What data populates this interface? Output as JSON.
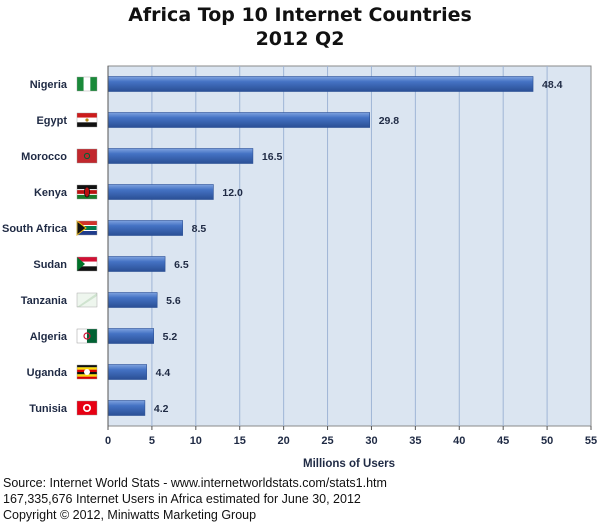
{
  "chart_data": {
    "type": "bar",
    "orientation": "horizontal",
    "title": "Africa Top 10 Internet Countries",
    "subtitle": "2012 Q2",
    "categories": [
      "Nigeria",
      "Egypt",
      "Morocco",
      "Kenya",
      "South Africa",
      "Sudan",
      "Tanzania",
      "Algeria",
      "Uganda",
      "Tunisia"
    ],
    "values": [
      48.4,
      29.8,
      16.5,
      12.0,
      8.5,
      6.5,
      5.6,
      5.2,
      4.4,
      4.2
    ],
    "value_labels": [
      "48.4",
      "29.8",
      "16.5",
      "12.0",
      "8.5",
      "6.5",
      "5.6",
      "5.2",
      "4.4",
      "4.2"
    ],
    "xlabel": "Millions of Users",
    "ylabel": "",
    "xlim": [
      0,
      55
    ],
    "xticks": [
      0,
      5,
      10,
      15,
      20,
      25,
      30,
      35,
      40,
      45,
      50,
      55
    ],
    "grid": true,
    "legend": "none"
  },
  "colors": {
    "plot_background": "#dbe5f1",
    "bar_fill": "#4472c4",
    "bar_dark": "#2a4f95",
    "bar_light": "#7fa3e0",
    "grid": "#9fb5d6",
    "text": "#1f2a44"
  },
  "flags": [
    "nigeria-flag-icon",
    "egypt-flag-icon",
    "morocco-flag-icon",
    "kenya-flag-icon",
    "south-africa-flag-icon",
    "sudan-flag-icon",
    "tanzania-flag-icon",
    "algeria-flag-icon",
    "uganda-flag-icon",
    "tunisia-flag-icon"
  ],
  "footer": {
    "source": "Source: Internet World Stats - www.internetworldstats.com/stats1.htm",
    "estimate": "167,335,676 Internet Users in Africa estimated for June 30, 2012",
    "copyright": "Copyright © 2012, Miniwatts Marketing Group"
  }
}
